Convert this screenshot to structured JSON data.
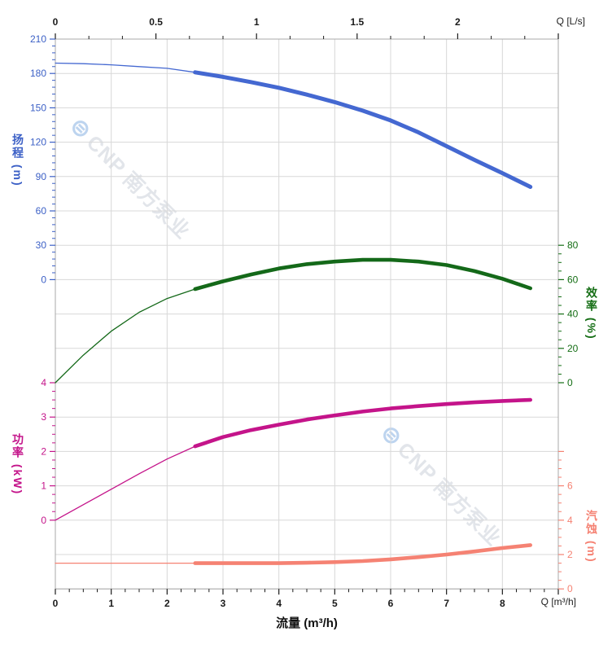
{
  "watermark": {
    "logo_glyph": "⊜",
    "text": "CNP 南方泵业"
  },
  "chart_data": {
    "type": "line",
    "title": "",
    "xlabel": "流量 (m³/h)",
    "grid": true,
    "colors": {
      "grid": "#d8d8d8",
      "border": "#a9a9a9",
      "axis_text": "#1a1a1a"
    },
    "x_top": {
      "unit_label": "Q [L/s]",
      "min": 0,
      "max": 2.5,
      "major_values": [
        0,
        0.5,
        1,
        1.5,
        2,
        2.5
      ],
      "tick_labels": [
        "0",
        "0.5",
        "1",
        "1.5",
        "2",
        ""
      ],
      "minor_divisions": 3
    },
    "x_bottom": {
      "unit_label": "Q [m³/h]",
      "min": 0,
      "max": 9,
      "major_values": [
        0,
        1,
        2,
        3,
        4,
        5,
        6,
        7,
        8,
        9
      ],
      "tick_labels": [
        "0",
        "1",
        "2",
        "3",
        "4",
        "5",
        "6",
        "7",
        "8",
        ""
      ],
      "minor_divisions": 4
    },
    "axes": {
      "head": {
        "label": "扬程 (m)",
        "color": "#3c60c6",
        "min": 0,
        "max": 210,
        "major_values": [
          210,
          180,
          150,
          120,
          90,
          60,
          30,
          0
        ],
        "tick_labels": [
          "210",
          "180",
          "150",
          "120",
          "90",
          "60",
          "30",
          "0"
        ],
        "minor_divisions": 5
      },
      "efficiency": {
        "label": "效率 (%)",
        "color": "#156e15",
        "min": 0,
        "max": 80,
        "major_values": [
          80,
          60,
          40,
          20,
          0
        ],
        "tick_labels": [
          "80",
          "60",
          "40",
          "20",
          "0"
        ],
        "minor_divisions": 4
      },
      "power": {
        "label": "功率 (kW)",
        "color": "#c4148a",
        "min": 0,
        "max": 4,
        "major_values": [
          4,
          3,
          2,
          1,
          0
        ],
        "tick_labels": [
          "4",
          "3",
          "2",
          "1",
          "0"
        ],
        "minor_divisions": 4
      },
      "npsh": {
        "label": "汽蚀 (m)",
        "color": "#f58273",
        "min": 0,
        "max": 8,
        "major_values": [
          8,
          6,
          4,
          2,
          0
        ],
        "tick_labels": [
          "",
          "6",
          "4",
          "2",
          "0"
        ],
        "minor_divisions": 4
      }
    },
    "x_values": [
      0,
      0.5,
      1,
      1.5,
      2,
      2.5,
      3,
      3.5,
      4,
      4.5,
      5,
      5.5,
      6,
      6.5,
      7,
      7.5,
      8,
      8.5
    ],
    "duty_range_start": 2.5,
    "series": [
      {
        "id": "head",
        "name": "扬程",
        "axis": "head",
        "color": "#4468d1",
        "values": [
          189,
          188.5,
          187.5,
          186,
          184.5,
          181,
          177,
          172.5,
          167.5,
          161.5,
          155,
          147.5,
          139,
          128.5,
          116.5,
          104.5,
          93,
          81
        ]
      },
      {
        "id": "efficiency",
        "name": "效率",
        "axis": "efficiency",
        "color": "#146919",
        "values": [
          0,
          16,
          30,
          41,
          49,
          54.5,
          59,
          63,
          66.5,
          69,
          70.5,
          71.5,
          71.5,
          70.5,
          68.5,
          65,
          60.5,
          55
        ]
      },
      {
        "id": "power",
        "name": "功率",
        "axis": "power",
        "color": "#c4148a",
        "values": [
          0,
          0.45,
          0.9,
          1.35,
          1.78,
          2.15,
          2.42,
          2.62,
          2.78,
          2.93,
          3.05,
          3.16,
          3.25,
          3.32,
          3.38,
          3.43,
          3.47,
          3.5
        ]
      },
      {
        "id": "npsh",
        "name": "汽蚀",
        "axis": "npsh",
        "color": "#f58273",
        "values": [
          1.5,
          1.5,
          1.5,
          1.5,
          1.5,
          1.5,
          1.5,
          1.5,
          1.5,
          1.52,
          1.56,
          1.62,
          1.72,
          1.85,
          2.0,
          2.18,
          2.38,
          2.55
        ]
      }
    ]
  }
}
